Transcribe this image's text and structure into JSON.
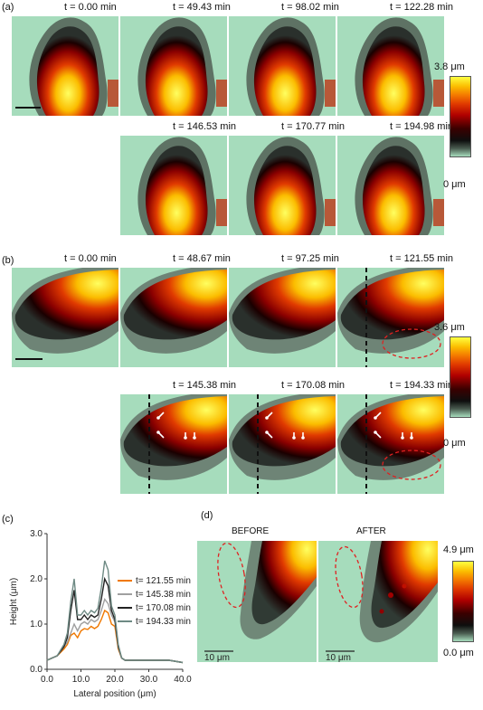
{
  "panel_a": {
    "label": "(a)",
    "times": [
      "t = 0.00 min",
      "t = 49.43 min",
      "t = 98.02 min",
      "t = 122.28 min",
      "t = 146.53 min",
      "t = 170.77 min",
      "t = 194.98 min"
    ],
    "colorbar": {
      "max": "3.8 μm",
      "min": "0 μm"
    }
  },
  "panel_b": {
    "label": "(b)",
    "times": [
      "t = 0.00 min",
      "t = 48.67 min",
      "t = 97.25 min",
      "t = 121.55 min",
      "t = 145.38 min",
      "t = 170.08 min",
      "t = 194.33 min"
    ],
    "colorbar": {
      "max": "3.6 μm",
      "min": "0 μm"
    }
  },
  "panel_c": {
    "label": "(c)",
    "chart_data": {
      "type": "line",
      "xlabel": "Lateral position (μm)",
      "ylabel": "Height (μm)",
      "xlim": [
        0,
        40
      ],
      "ylim": [
        0,
        3
      ],
      "xticks": [
        "0.0",
        "10.0",
        "20.0",
        "30.0",
        "40.0"
      ],
      "yticks": [
        "0.0",
        "1.0",
        "2.0",
        "3.0"
      ],
      "x": [
        0,
        3,
        5,
        6,
        7,
        8,
        9,
        10,
        11,
        12,
        13,
        14,
        15,
        16,
        17,
        18,
        19,
        20,
        21,
        22,
        23,
        25,
        28,
        32,
        36,
        40
      ],
      "series": [
        {
          "name": "t= 121.55 min",
          "color": "#f07800",
          "values": [
            0.2,
            0.3,
            0.45,
            0.55,
            0.75,
            0.8,
            0.7,
            0.85,
            0.9,
            0.88,
            0.95,
            0.9,
            0.95,
            1.1,
            1.3,
            1.25,
            1.0,
            0.95,
            0.45,
            0.25,
            0.2,
            0.2,
            0.2,
            0.2,
            0.2,
            0.15
          ]
        },
        {
          "name": "t= 145.38 min",
          "color": "#a0a0a0",
          "values": [
            0.2,
            0.3,
            0.5,
            0.6,
            0.8,
            1.0,
            0.85,
            1.0,
            1.05,
            1.0,
            1.1,
            1.05,
            1.1,
            1.3,
            1.55,
            1.45,
            1.2,
            1.05,
            0.5,
            0.25,
            0.2,
            0.2,
            0.2,
            0.2,
            0.2,
            0.15
          ]
        },
        {
          "name": "t= 170.08 min",
          "color": "#222222",
          "values": [
            0.2,
            0.3,
            0.5,
            0.7,
            1.3,
            1.75,
            1.1,
            1.1,
            1.2,
            1.1,
            1.2,
            1.15,
            1.2,
            1.55,
            2.0,
            1.85,
            1.3,
            1.1,
            0.5,
            0.25,
            0.2,
            0.2,
            0.2,
            0.2,
            0.2,
            0.15
          ]
        },
        {
          "name": "t= 194.33 min",
          "color": "#6e8a84",
          "values": [
            0.2,
            0.3,
            0.55,
            0.8,
            1.5,
            2.0,
            1.2,
            1.2,
            1.3,
            1.2,
            1.3,
            1.25,
            1.35,
            1.8,
            2.4,
            2.2,
            1.4,
            1.2,
            0.55,
            0.25,
            0.2,
            0.2,
            0.2,
            0.2,
            0.2,
            0.15
          ]
        }
      ]
    }
  },
  "panel_d": {
    "label": "(d)",
    "before": "BEFORE",
    "after": "AFTER",
    "scale": "10 μm",
    "colorbar": {
      "max": "4.9 μm",
      "min": "0.0 μm"
    }
  }
}
